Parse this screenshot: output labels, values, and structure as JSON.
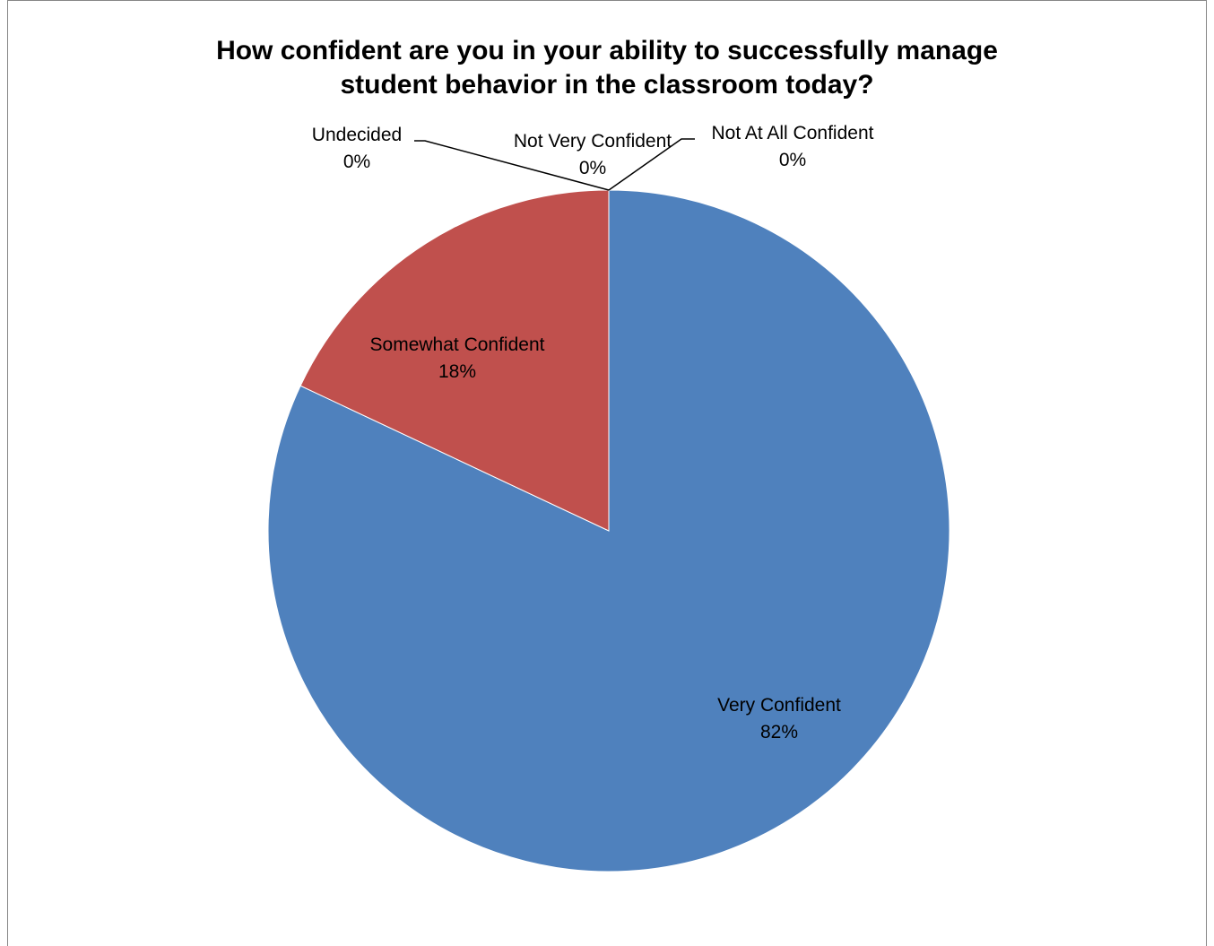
{
  "chart_data": {
    "type": "pie",
    "title": "How confident are you in your ability to successfully manage\nstudent behavior in the classroom today?",
    "slices": [
      {
        "label": "Very Confident",
        "value": 82,
        "percent_label": "82%",
        "color": "#4F81BD"
      },
      {
        "label": "Somewhat Confident",
        "value": 18,
        "percent_label": "18%",
        "color": "#C0504D"
      },
      {
        "label": "Undecided",
        "value": 0,
        "percent_label": "0%",
        "color": "#9BBB59"
      },
      {
        "label": "Not Very Confident",
        "value": 0,
        "percent_label": "0%",
        "color": "#8064A2"
      },
      {
        "label": "Not At All Confident",
        "value": 0,
        "percent_label": "0%",
        "color": "#4BACC6"
      }
    ],
    "start_angle": "12 o'clock, clockwise",
    "legend": "none",
    "data_labels": "category name and percentage"
  }
}
